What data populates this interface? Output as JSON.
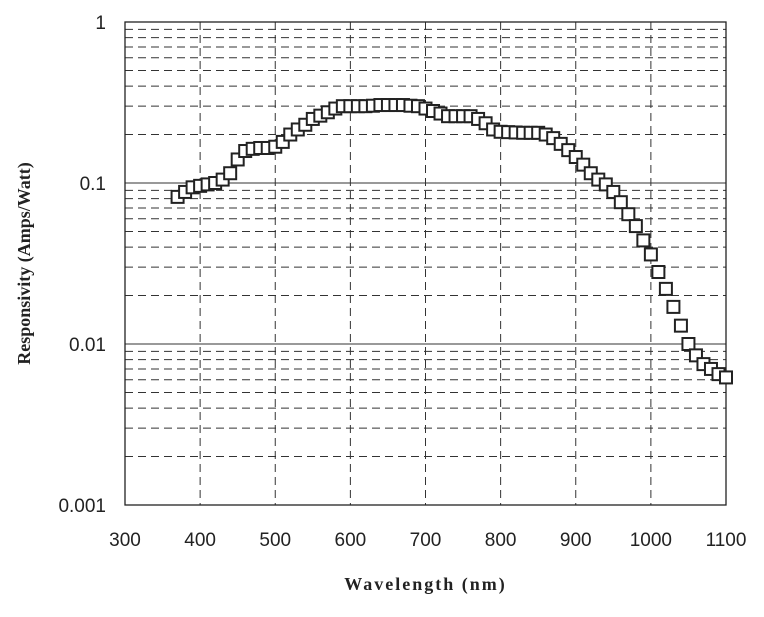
{
  "chart_data": {
    "type": "scatter",
    "xlabel": "Wavelength (nm)",
    "ylabel": "Responsivity (Amps/Watt)",
    "xlim": [
      300,
      1100
    ],
    "ylim": [
      0.001,
      1
    ],
    "yscale": "log",
    "x_ticks": [
      300,
      400,
      500,
      600,
      700,
      800,
      900,
      1000,
      1100
    ],
    "x_tick_labels": [
      "300",
      "400",
      "500",
      "600",
      "700",
      "800",
      "900",
      "1000",
      "1100"
    ],
    "y_ticks": [
      0.001,
      0.01,
      0.1,
      1
    ],
    "y_tick_labels": [
      "0.001",
      "0.01",
      "0.1",
      "1"
    ],
    "grid": true,
    "grid_minor_style": "dashed",
    "marker": "hollow-square",
    "marker_color": "#222222",
    "series": [
      {
        "x": [
          370,
          380,
          390,
          400,
          410,
          420,
          430,
          440,
          450,
          460,
          470,
          480,
          490,
          500,
          510,
          520,
          530,
          540,
          550,
          560,
          570,
          580,
          590,
          600,
          610,
          620,
          630,
          640,
          650,
          660,
          670,
          680,
          690,
          700,
          710,
          720,
          730,
          740,
          750,
          760,
          770,
          780,
          790,
          800,
          810,
          820,
          830,
          840,
          850,
          860,
          870,
          880,
          890,
          900,
          910,
          920,
          930,
          940,
          950,
          960,
          970,
          980,
          990,
          1000,
          1010,
          1020,
          1030,
          1040,
          1050,
          1060,
          1070,
          1080,
          1090,
          1100
        ],
        "y": [
          0.082,
          0.088,
          0.094,
          0.096,
          0.098,
          0.1,
          0.105,
          0.115,
          0.14,
          0.158,
          0.163,
          0.165,
          0.165,
          0.168,
          0.18,
          0.2,
          0.215,
          0.23,
          0.25,
          0.262,
          0.275,
          0.29,
          0.3,
          0.3,
          0.3,
          0.3,
          0.302,
          0.305,
          0.305,
          0.305,
          0.305,
          0.302,
          0.3,
          0.29,
          0.28,
          0.27,
          0.26,
          0.26,
          0.26,
          0.26,
          0.25,
          0.235,
          0.215,
          0.208,
          0.207,
          0.206,
          0.205,
          0.205,
          0.205,
          0.2,
          0.19,
          0.175,
          0.16,
          0.145,
          0.13,
          0.115,
          0.105,
          0.098,
          0.088,
          0.076,
          0.064,
          0.054,
          0.044,
          0.036,
          0.028,
          0.022,
          0.017,
          0.013,
          0.01,
          0.0085,
          0.0075,
          0.007,
          0.0065,
          0.0062
        ]
      }
    ]
  }
}
